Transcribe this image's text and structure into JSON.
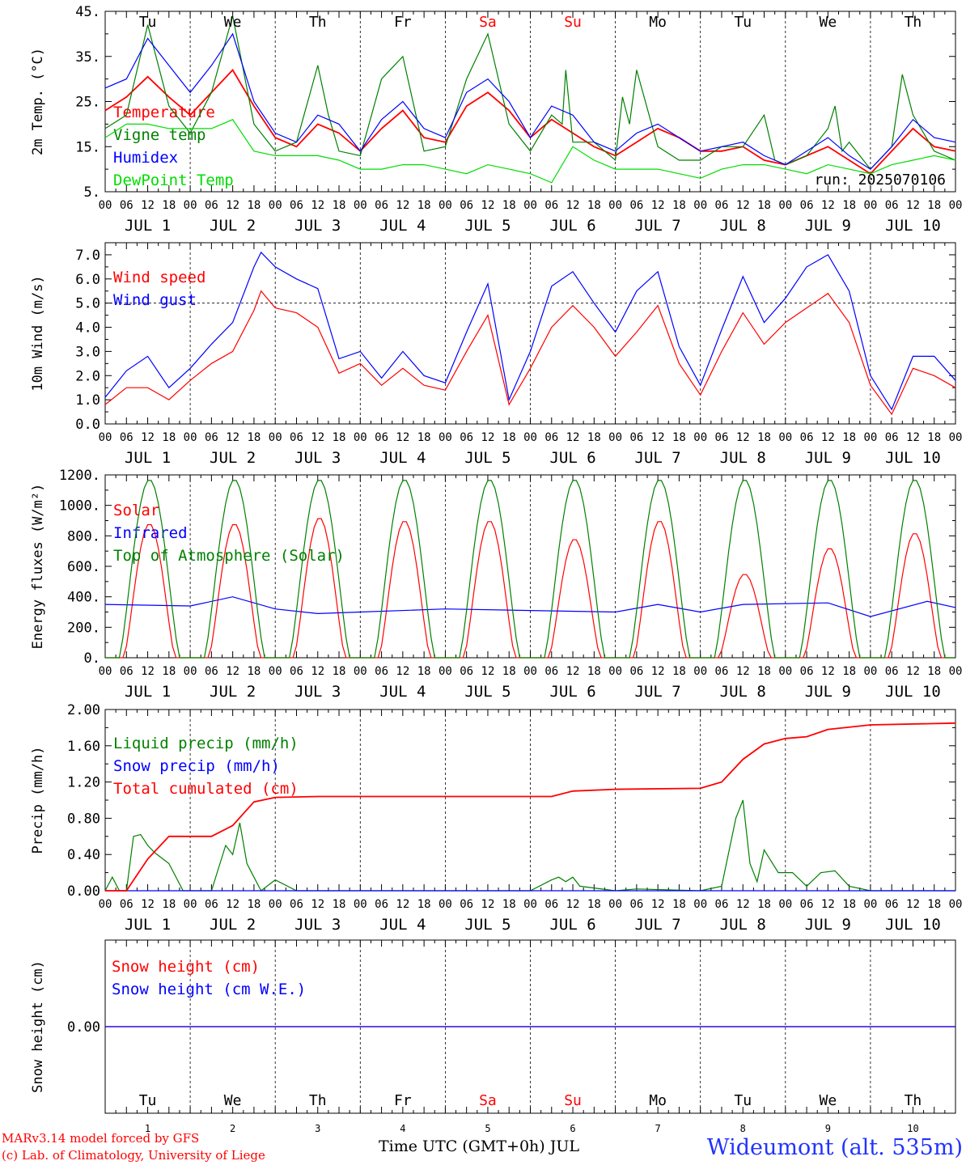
{
  "days": {
    "names": [
      "Tu",
      "We",
      "Th",
      "Fr",
      "Sa",
      "Su",
      "Mo",
      "Tu",
      "We",
      "Th"
    ],
    "weekend_flags": [
      false,
      false,
      false,
      false,
      true,
      true,
      false,
      false,
      false,
      false
    ],
    "dates": [
      "JUL  1",
      "JUL  2",
      "JUL  3",
      "JUL  4",
      "JUL  5",
      "JUL  6",
      "JUL  7",
      "JUL  8",
      "JUL  9",
      "JUL 10"
    ],
    "numbers": [
      "1",
      "2",
      "3",
      "4",
      "5",
      "6",
      "7",
      "8",
      "9",
      "10"
    ],
    "hour_labels": [
      "00",
      "06",
      "12",
      "18"
    ],
    "final_hour_label": "00"
  },
  "colors": {
    "red": "#ff0000",
    "green": "#008000",
    "blue": "#0000ff",
    "lightgreen": "#00dd00",
    "weekend": "#ff0000",
    "blue_title": "#2233ff"
  },
  "footer": {
    "model": "MARv3.14 model forced by GFS",
    "copyright": "(c) Lab. of Climatology, University of Liege",
    "xlabel": "Time UTC (GMT+0h) JUL",
    "station": "Wideumont (alt. 535m)"
  },
  "chart_data": [
    {
      "type": "line",
      "ylabel": "2m Temp. (°C)",
      "ylim": [
        5,
        45
      ],
      "yticks": [
        "5.",
        "15.",
        "25.",
        "35.",
        "45."
      ],
      "run_label": "run: 2025070106",
      "series": [
        {
          "name": "Temperature",
          "color": "#ff0000",
          "x": [
            0,
            6,
            12,
            18,
            24,
            30,
            36,
            42,
            48,
            54,
            60,
            66,
            72,
            78,
            84,
            90,
            96,
            102,
            108,
            114,
            120,
            126,
            132,
            138,
            144,
            150,
            156,
            162,
            168,
            174,
            180,
            186,
            192,
            198,
            204,
            210,
            216,
            222,
            228,
            234,
            240
          ],
          "y": [
            23,
            26,
            30.5,
            26,
            22,
            27,
            32,
            24,
            17,
            15,
            20,
            18,
            14,
            19,
            23,
            17,
            16,
            24,
            27,
            23,
            17,
            21,
            18,
            15,
            13,
            16,
            19,
            17,
            14,
            14,
            15,
            12,
            11,
            13,
            15,
            12,
            9,
            14,
            19,
            15,
            14
          ]
        },
        {
          "name": "Vigne temp",
          "color": "#008000",
          "x": [
            0,
            6,
            12,
            18,
            24,
            30,
            36,
            42,
            48,
            54,
            60,
            63,
            66,
            72,
            78,
            84,
            90,
            96,
            102,
            108,
            114,
            120,
            126,
            129,
            130,
            132,
            138,
            144,
            146,
            148,
            150,
            156,
            162,
            168,
            174,
            180,
            186,
            189,
            192,
            198,
            204,
            206,
            208,
            210,
            216,
            222,
            225,
            228,
            234,
            240
          ],
          "y": [
            19,
            22,
            42,
            24,
            18,
            27,
            44,
            20,
            14,
            16,
            33,
            22,
            14,
            13,
            30,
            35,
            14,
            15,
            30,
            40,
            20,
            14,
            22,
            20,
            32,
            16,
            16,
            12,
            26,
            20,
            32,
            15,
            12,
            12,
            15,
            15,
            22,
            12,
            11,
            13,
            19,
            24,
            14,
            16,
            10,
            15,
            31,
            22,
            14,
            12
          ]
        },
        {
          "name": "Humidex",
          "color": "#0000ff",
          "x": [
            0,
            6,
            12,
            18,
            24,
            30,
            36,
            42,
            48,
            54,
            60,
            66,
            72,
            78,
            84,
            90,
            96,
            102,
            108,
            114,
            120,
            126,
            132,
            138,
            144,
            150,
            156,
            162,
            168,
            174,
            180,
            186,
            192,
            198,
            204,
            210,
            216,
            222,
            228,
            234,
            240
          ],
          "y": [
            28,
            30,
            39,
            33,
            27,
            33,
            40,
            25,
            18,
            16,
            22,
            20,
            14,
            21,
            25,
            19,
            17,
            27,
            30,
            25,
            17,
            24,
            22,
            16,
            14,
            18,
            20,
            17,
            14,
            15,
            16,
            13,
            11,
            14,
            17,
            13,
            10,
            15,
            21,
            17,
            16
          ]
        },
        {
          "name": "DewPoint Temp",
          "color": "#00dd00",
          "x": [
            0,
            6,
            12,
            18,
            24,
            30,
            36,
            42,
            48,
            54,
            60,
            66,
            72,
            78,
            84,
            90,
            96,
            102,
            108,
            114,
            120,
            126,
            132,
            138,
            144,
            150,
            156,
            162,
            168,
            174,
            180,
            186,
            192,
            198,
            204,
            210,
            216,
            222,
            228,
            234,
            240
          ],
          "y": [
            17,
            20,
            20,
            19,
            19,
            19,
            21,
            14,
            13,
            13,
            13,
            12,
            10,
            10,
            11,
            11,
            10,
            9,
            11,
            10,
            9,
            7,
            15,
            12,
            10,
            10,
            10,
            9,
            8,
            10,
            11,
            11,
            10,
            9,
            11,
            10,
            9,
            11,
            12,
            13,
            12
          ]
        }
      ]
    },
    {
      "type": "line",
      "ylabel": "10m Wind (m/s)",
      "ylim": [
        0,
        7.5
      ],
      "yticks": [
        "0.0",
        "1.0",
        "2.0",
        "3.0",
        "4.0",
        "5.0",
        "6.0",
        "7.0"
      ],
      "reference_line": 5.0,
      "series": [
        {
          "name": "Wind speed",
          "color": "#ff0000",
          "x": [
            0,
            6,
            12,
            18,
            24,
            30,
            36,
            42,
            44,
            48,
            54,
            60,
            66,
            72,
            78,
            84,
            90,
            96,
            102,
            108,
            114,
            120,
            126,
            132,
            138,
            144,
            150,
            156,
            162,
            168,
            174,
            180,
            186,
            192,
            198,
            204,
            210,
            216,
            222,
            228,
            234,
            240
          ],
          "y": [
            0.8,
            1.5,
            1.5,
            1.0,
            1.8,
            2.5,
            3.0,
            4.7,
            5.5,
            4.8,
            4.6,
            4.0,
            2.1,
            2.5,
            1.6,
            2.3,
            1.6,
            1.4,
            3.0,
            4.5,
            0.8,
            2.3,
            4.0,
            4.9,
            4.0,
            2.8,
            3.8,
            4.9,
            2.5,
            1.2,
            3.0,
            4.6,
            3.3,
            4.2,
            4.8,
            5.4,
            4.2,
            1.6,
            0.4,
            2.3,
            2.0,
            1.5
          ]
        },
        {
          "name": "Wind gust",
          "color": "#0000ff",
          "x": [
            0,
            6,
            12,
            18,
            24,
            30,
            36,
            42,
            44,
            48,
            54,
            60,
            66,
            72,
            78,
            84,
            90,
            96,
            102,
            108,
            114,
            120,
            126,
            132,
            138,
            144,
            150,
            156,
            162,
            168,
            174,
            180,
            186,
            192,
            198,
            204,
            210,
            216,
            222,
            228,
            234,
            240
          ],
          "y": [
            1.1,
            2.2,
            2.8,
            1.5,
            2.3,
            3.3,
            4.2,
            6.5,
            7.1,
            6.5,
            6.0,
            5.6,
            2.7,
            3.0,
            1.9,
            3.0,
            2.0,
            1.7,
            3.8,
            5.8,
            1.0,
            3.0,
            5.7,
            6.3,
            5.0,
            3.8,
            5.5,
            6.3,
            3.2,
            1.6,
            3.9,
            6.1,
            4.2,
            5.2,
            6.5,
            7.0,
            5.5,
            2.0,
            0.6,
            2.8,
            2.8,
            1.8
          ]
        }
      ]
    },
    {
      "type": "line",
      "ylabel": "Energy fluxes (W/m²)",
      "ylim": [
        0,
        1200
      ],
      "yticks": [
        "0.",
        "200.",
        "400.",
        "600.",
        "800.",
        "1000.",
        "1200."
      ],
      "series": [
        {
          "name": "Solar",
          "color": "#ff0000",
          "daily_peak": [
            880,
            880,
            920,
            900,
            900,
            780,
            900,
            550,
            720,
            820
          ]
        },
        {
          "name": "Infrared",
          "color": "#0000ff",
          "x": [
            0,
            24,
            36,
            48,
            60,
            72,
            96,
            120,
            144,
            156,
            168,
            180,
            204,
            216,
            232,
            240
          ],
          "y": [
            350,
            340,
            400,
            320,
            290,
            300,
            320,
            310,
            300,
            350,
            300,
            350,
            360,
            270,
            370,
            330
          ]
        },
        {
          "name": "Top of Atmosphere (Solar)",
          "color": "#008000",
          "daily_peak": [
            1170,
            1170,
            1170,
            1170,
            1170,
            1170,
            1170,
            1170,
            1170,
            1170
          ]
        }
      ]
    },
    {
      "type": "line",
      "ylabel": "Precip (mm/h)",
      "ylim": [
        0,
        2.0
      ],
      "yticks": [
        "0.00",
        "0.40",
        "0.80",
        "1.20",
        "1.60",
        "2.00"
      ],
      "series": [
        {
          "name": "Liquid precip (mm/h)",
          "color": "#008000",
          "x": [
            0,
            2,
            4,
            6,
            8,
            10,
            12,
            14,
            18,
            22,
            24,
            30,
            34,
            36,
            38,
            40,
            42,
            44,
            48,
            54,
            60,
            120,
            126,
            128,
            130,
            132,
            134,
            144,
            150,
            168,
            174,
            178,
            180,
            182,
            184,
            186,
            190,
            194,
            198,
            202,
            206,
            210,
            216,
            240
          ],
          "y": [
            0,
            0.15,
            0,
            0,
            0.6,
            0.62,
            0.5,
            0.42,
            0.3,
            0,
            0,
            0,
            0.5,
            0.4,
            0.75,
            0.3,
            0.15,
            0,
            0.12,
            0,
            0,
            0,
            0.12,
            0.15,
            0.1,
            0.15,
            0.05,
            0,
            0.02,
            0,
            0.05,
            0.8,
            1.0,
            0.3,
            0.1,
            0.45,
            0.2,
            0.2,
            0.05,
            0.2,
            0.22,
            0.05,
            0,
            0
          ]
        },
        {
          "name": "Snow precip (mm/h)",
          "color": "#0000ff",
          "x": [
            0,
            240
          ],
          "y": [
            0,
            0
          ]
        },
        {
          "name": "Total cumulated (cm)",
          "color": "#ff0000",
          "x": [
            0,
            6,
            12,
            18,
            24,
            30,
            36,
            42,
            48,
            60,
            126,
            132,
            144,
            168,
            174,
            180,
            186,
            192,
            198,
            204,
            216,
            240
          ],
          "y": [
            0,
            0,
            0.35,
            0.6,
            0.6,
            0.6,
            0.72,
            0.98,
            1.03,
            1.04,
            1.04,
            1.1,
            1.12,
            1.13,
            1.2,
            1.45,
            1.62,
            1.68,
            1.7,
            1.78,
            1.83,
            1.85
          ]
        }
      ]
    },
    {
      "type": "line",
      "ylabel": "Snow height (cm)",
      "ylim": [
        -1,
        1
      ],
      "yticks": [
        "0.00"
      ],
      "series": [
        {
          "name": "Snow height (cm)",
          "color": "#ff0000",
          "x": [
            0,
            240
          ],
          "y": [
            0,
            0
          ]
        },
        {
          "name": "Snow height (cm W.E.)",
          "color": "#0000ff",
          "x": [
            0,
            240
          ],
          "y": [
            0,
            0
          ]
        }
      ]
    }
  ]
}
